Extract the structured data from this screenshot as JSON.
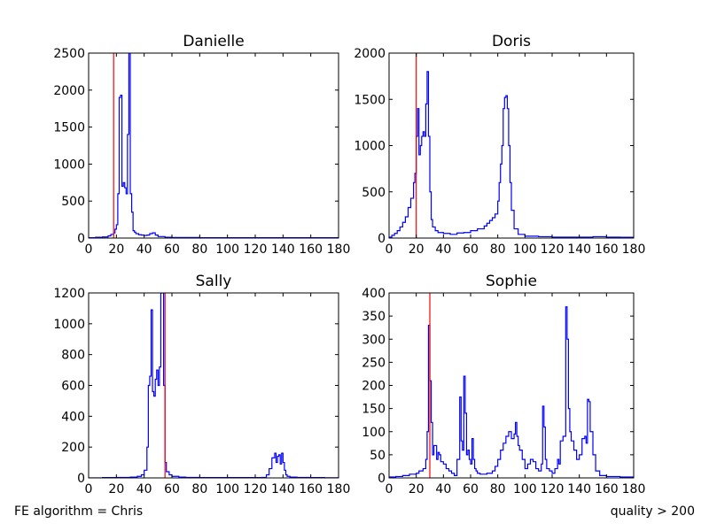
{
  "footer": {
    "left": "FE algorithm = Chris",
    "right": "quality > 200"
  },
  "colors": {
    "histogram": "#0000ff",
    "marker": "#ff0000",
    "axes": "#000000"
  },
  "chart_data": [
    {
      "type": "line",
      "title": "Danielle",
      "xlim": [
        0,
        180
      ],
      "ylim": [
        0,
        2500
      ],
      "xticks": [
        0,
        20,
        40,
        60,
        80,
        100,
        120,
        140,
        160,
        180
      ],
      "yticks": [
        0,
        500,
        1000,
        1500,
        2000,
        2500
      ],
      "marker_x": 18,
      "x": [
        0,
        5,
        10,
        14,
        16,
        18,
        19,
        20,
        21,
        22,
        23,
        24,
        25,
        26,
        27,
        28,
        29,
        30,
        31,
        32,
        33,
        34,
        36,
        38,
        40,
        42,
        44,
        46,
        48,
        50,
        55,
        60,
        70,
        80,
        100,
        120,
        140,
        160,
        180
      ],
      "y": [
        5,
        10,
        15,
        30,
        50,
        70,
        120,
        180,
        600,
        1900,
        1930,
        700,
        750,
        680,
        600,
        1400,
        2500,
        600,
        350,
        100,
        80,
        60,
        45,
        40,
        35,
        40,
        60,
        70,
        40,
        20,
        10,
        8,
        8,
        5,
        5,
        5,
        5,
        5,
        5
      ]
    },
    {
      "type": "line",
      "title": "Doris",
      "xlim": [
        0,
        180
      ],
      "ylim": [
        0,
        2000
      ],
      "xticks": [
        0,
        20,
        40,
        60,
        80,
        100,
        120,
        140,
        160,
        180
      ],
      "yticks": [
        0,
        500,
        1000,
        1500,
        2000
      ],
      "marker_x": 20,
      "x": [
        0,
        2,
        4,
        6,
        8,
        10,
        12,
        14,
        16,
        18,
        19,
        20,
        21,
        22,
        23,
        24,
        25,
        26,
        27,
        28,
        29,
        30,
        31,
        32,
        34,
        36,
        40,
        45,
        50,
        55,
        60,
        65,
        70,
        72,
        74,
        76,
        78,
        80,
        81,
        82,
        83,
        84,
        85,
        86,
        87,
        88,
        89,
        90,
        92,
        95,
        100,
        110,
        120,
        130,
        140,
        150,
        160,
        170,
        180
      ],
      "y": [
        10,
        30,
        50,
        80,
        120,
        170,
        230,
        330,
        430,
        600,
        700,
        1100,
        1400,
        900,
        1000,
        1100,
        1150,
        1100,
        1450,
        1800,
        1100,
        500,
        200,
        120,
        80,
        60,
        50,
        40,
        55,
        60,
        80,
        100,
        130,
        160,
        190,
        220,
        260,
        400,
        600,
        800,
        1000,
        1400,
        1520,
        1540,
        1400,
        1000,
        600,
        300,
        100,
        40,
        20,
        15,
        10,
        10,
        10,
        15,
        10,
        8,
        5
      ]
    },
    {
      "type": "line",
      "title": "Sally",
      "xlim": [
        0,
        180
      ],
      "ylim": [
        0,
        1200
      ],
      "xticks": [
        0,
        20,
        40,
        60,
        80,
        100,
        120,
        140,
        160,
        180
      ],
      "yticks": [
        0,
        200,
        400,
        600,
        800,
        1000,
        1200
      ],
      "marker_x": 55,
      "x": [
        0,
        10,
        20,
        30,
        35,
        38,
        40,
        42,
        43,
        44,
        45,
        46,
        47,
        48,
        49,
        50,
        51,
        52,
        53,
        54,
        55,
        56,
        58,
        60,
        65,
        70,
        80,
        90,
        100,
        110,
        120,
        125,
        128,
        130,
        132,
        134,
        135,
        136,
        137,
        138,
        139,
        140,
        141,
        142,
        143,
        145,
        150,
        160,
        170,
        180
      ],
      "y": [
        0,
        2,
        3,
        5,
        10,
        20,
        50,
        200,
        600,
        660,
        1090,
        560,
        530,
        640,
        700,
        600,
        720,
        1200,
        1200,
        600,
        100,
        40,
        20,
        10,
        5,
        3,
        2,
        2,
        2,
        2,
        2,
        3,
        20,
        60,
        130,
        160,
        100,
        140,
        150,
        90,
        160,
        100,
        50,
        20,
        10,
        5,
        3,
        2,
        1,
        0
      ]
    },
    {
      "type": "line",
      "title": "Sophie",
      "xlim": [
        0,
        180
      ],
      "ylim": [
        0,
        400
      ],
      "xticks": [
        0,
        20,
        40,
        60,
        80,
        100,
        120,
        140,
        160,
        180
      ],
      "yticks": [
        0,
        50,
        100,
        150,
        200,
        250,
        300,
        350,
        400
      ],
      "marker_x": 30,
      "x": [
        0,
        5,
        10,
        15,
        20,
        22,
        25,
        27,
        28,
        29,
        30,
        31,
        32,
        33,
        35,
        36,
        37,
        38,
        40,
        42,
        44,
        46,
        48,
        50,
        52,
        53,
        54,
        55,
        56,
        57,
        58,
        59,
        60,
        61,
        62,
        63,
        64,
        65,
        67,
        70,
        72,
        74,
        76,
        78,
        80,
        82,
        84,
        86,
        88,
        90,
        92,
        93,
        94,
        95,
        96,
        98,
        100,
        102,
        104,
        106,
        108,
        110,
        112,
        113,
        114,
        115,
        116,
        118,
        120,
        122,
        124,
        125,
        126,
        128,
        130,
        131,
        132,
        133,
        134,
        136,
        138,
        140,
        142,
        144,
        145,
        146,
        147,
        148,
        150,
        152,
        155,
        160,
        170,
        180
      ],
      "y": [
        2,
        3,
        5,
        8,
        10,
        15,
        20,
        40,
        100,
        330,
        210,
        120,
        50,
        70,
        40,
        55,
        50,
        35,
        30,
        20,
        15,
        10,
        5,
        40,
        175,
        80,
        60,
        220,
        140,
        50,
        60,
        40,
        30,
        85,
        40,
        20,
        15,
        10,
        8,
        8,
        10,
        10,
        15,
        25,
        40,
        60,
        75,
        90,
        100,
        85,
        95,
        120,
        90,
        70,
        60,
        40,
        20,
        30,
        40,
        35,
        20,
        15,
        30,
        155,
        110,
        40,
        20,
        15,
        10,
        20,
        40,
        30,
        80,
        90,
        370,
        300,
        150,
        100,
        80,
        60,
        40,
        50,
        85,
        90,
        75,
        170,
        165,
        100,
        50,
        15,
        5,
        3,
        2,
        1
      ]
    }
  ]
}
